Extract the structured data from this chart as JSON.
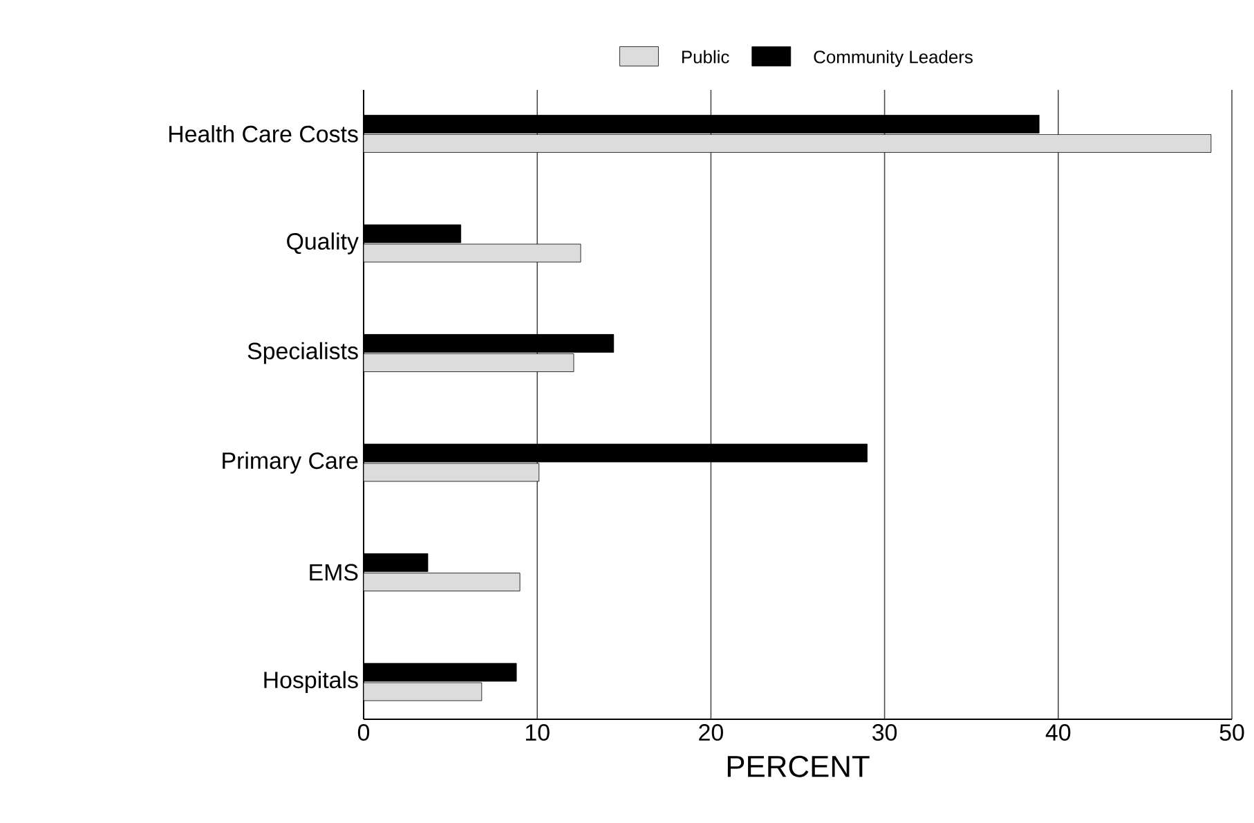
{
  "chart_data": {
    "type": "bar",
    "orientation": "horizontal",
    "xlabel": "PERCENT",
    "categories": [
      "Health Care Costs",
      "Quality",
      "Specialists",
      "Primary Care",
      "EMS",
      "Hospitals"
    ],
    "series": [
      {
        "name": "Public",
        "color": "#dcdcdc",
        "values": [
          48.8,
          12.5,
          12.1,
          10.1,
          9.0,
          6.8
        ]
      },
      {
        "name": "Community Leaders",
        "color": "#000000",
        "values": [
          38.9,
          5.6,
          14.4,
          29.0,
          3.7,
          8.8
        ]
      }
    ],
    "xlim": [
      0,
      50
    ],
    "xticks": [
      0,
      10,
      20,
      30,
      40,
      50
    ],
    "grid": "x",
    "legend": "top"
  }
}
